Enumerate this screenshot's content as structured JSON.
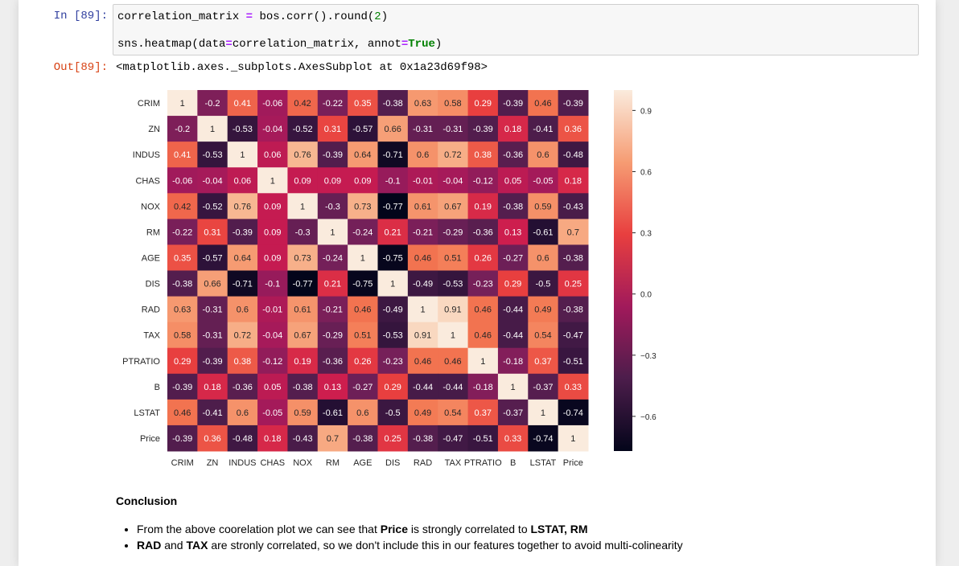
{
  "cell_in": {
    "prompt": "In [89]:",
    "line1": {
      "a": "correlation_matrix ",
      "op": "=",
      "b": " bos.corr().round(",
      "num": "2",
      "c": ")"
    },
    "line2": {
      "a": "sns.heatmap(data",
      "op1": "=",
      "b": "correlation_matrix, annot",
      "op2": "=",
      "kw": "True",
      "c": ")"
    }
  },
  "cell_out": {
    "prompt": "Out[89]:",
    "text": "<matplotlib.axes._subplots.AxesSubplot at 0x1a23d69f98>"
  },
  "chart_data": {
    "type": "heatmap",
    "labels": [
      "CRIM",
      "ZN",
      "INDUS",
      "CHAS",
      "NOX",
      "RM",
      "AGE",
      "DIS",
      "RAD",
      "TAX",
      "PTRATIO",
      "B",
      "LSTAT",
      "Price"
    ],
    "values": [
      [
        1,
        -0.2,
        0.41,
        -0.06,
        0.42,
        -0.22,
        0.35,
        -0.38,
        0.63,
        0.58,
        0.29,
        -0.39,
        0.46,
        -0.39
      ],
      [
        -0.2,
        1,
        -0.53,
        -0.04,
        -0.52,
        0.31,
        -0.57,
        0.66,
        -0.31,
        -0.31,
        -0.39,
        0.18,
        -0.41,
        0.36
      ],
      [
        0.41,
        -0.53,
        1,
        0.06,
        0.76,
        -0.39,
        0.64,
        -0.71,
        0.6,
        0.72,
        0.38,
        -0.36,
        0.6,
        -0.48
      ],
      [
        -0.06,
        -0.04,
        0.06,
        1,
        0.09,
        0.09,
        0.09,
        -0.1,
        -0.01,
        -0.04,
        -0.12,
        0.05,
        -0.05,
        0.18
      ],
      [
        0.42,
        -0.52,
        0.76,
        0.09,
        1,
        -0.3,
        0.73,
        -0.77,
        0.61,
        0.67,
        0.19,
        -0.38,
        0.59,
        -0.43
      ],
      [
        -0.22,
        0.31,
        -0.39,
        0.09,
        -0.3,
        1,
        -0.24,
        0.21,
        -0.21,
        -0.29,
        -0.36,
        0.13,
        -0.61,
        0.7
      ],
      [
        0.35,
        -0.57,
        0.64,
        0.09,
        0.73,
        -0.24,
        1,
        -0.75,
        0.46,
        0.51,
        0.26,
        -0.27,
        0.6,
        -0.38
      ],
      [
        -0.38,
        0.66,
        -0.71,
        -0.1,
        -0.77,
        0.21,
        -0.75,
        1,
        -0.49,
        -0.53,
        -0.23,
        0.29,
        -0.5,
        0.25
      ],
      [
        0.63,
        -0.31,
        0.6,
        -0.01,
        0.61,
        -0.21,
        0.46,
        -0.49,
        1,
        0.91,
        0.46,
        -0.44,
        0.49,
        -0.38
      ],
      [
        0.58,
        -0.31,
        0.72,
        -0.04,
        0.67,
        -0.29,
        0.51,
        -0.53,
        0.91,
        1,
        0.46,
        -0.44,
        0.54,
        -0.47
      ],
      [
        0.29,
        -0.39,
        0.38,
        -0.12,
        0.19,
        -0.36,
        0.26,
        -0.23,
        0.46,
        0.46,
        1,
        -0.18,
        0.37,
        -0.51
      ],
      [
        -0.39,
        0.18,
        -0.36,
        0.05,
        -0.38,
        0.13,
        -0.27,
        0.29,
        -0.44,
        -0.44,
        -0.18,
        1,
        -0.37,
        0.33
      ],
      [
        0.46,
        -0.41,
        0.6,
        -0.05,
        0.59,
        -0.61,
        0.6,
        -0.5,
        0.49,
        0.54,
        0.37,
        -0.37,
        1,
        -0.74
      ],
      [
        -0.39,
        0.36,
        -0.48,
        0.18,
        -0.43,
        0.7,
        -0.38,
        0.25,
        -0.38,
        -0.47,
        -0.51,
        0.33,
        -0.74,
        1
      ]
    ],
    "colorbar": {
      "min": -0.77,
      "max": 1,
      "ticks": [
        0.9,
        0.6,
        0.3,
        0.0,
        -0.3,
        -0.6
      ],
      "tick_labels": [
        "0.9",
        "0.6",
        "0.3",
        "0.0",
        "−0.3",
        "−0.6"
      ]
    },
    "colormap": "rocket"
  },
  "conclusion": {
    "heading": "Conclusion",
    "b1_text1": "From the above coorelation plot we can see that ",
    "b1_bold1": "Price",
    "b1_text2": " is strongly correlated to ",
    "b1_bold2": "LSTAT, RM",
    "b2_bold1": "RAD",
    "b2_text1": " and ",
    "b2_bold2": "TAX",
    "b2_text2": " are stronly correlated, so we don't include this in our features together to avoid multi-colinearity"
  }
}
